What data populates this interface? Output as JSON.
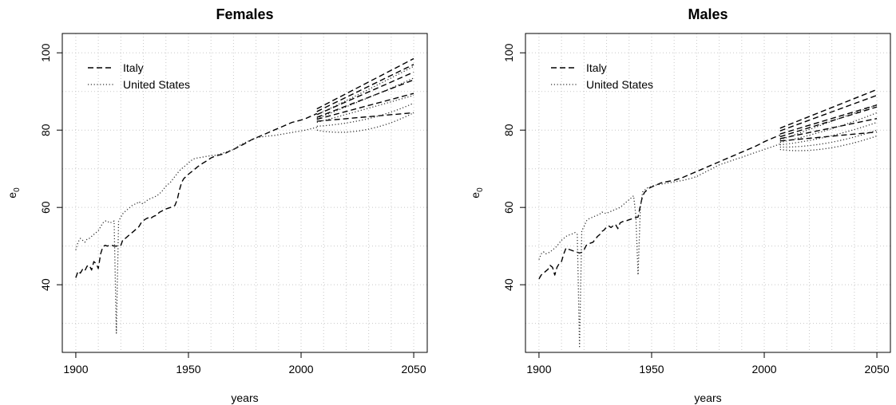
{
  "chart_data": [
    {
      "type": "line",
      "title": "Females",
      "xlabel": "years",
      "ylabel": "e",
      "ylabel_sub": "0",
      "xlim": [
        1894,
        2056
      ],
      "ylim": [
        22.5,
        105
      ],
      "xticks": [
        1900,
        1950,
        2000,
        2050
      ],
      "yticks": [
        40,
        60,
        80,
        100
      ],
      "grid": true,
      "grid_x": [
        1900,
        1910,
        1920,
        1930,
        1940,
        1950,
        1960,
        1970,
        1980,
        1990,
        2000,
        2010,
        2020,
        2030,
        2040,
        2050
      ],
      "grid_y": [
        30,
        40,
        50,
        60,
        70,
        80,
        90,
        100
      ],
      "legend_position": "top-left",
      "series": [
        {
          "name": "Italy",
          "style": "dashed",
          "color": "#000000",
          "x": [
            1900,
            1901,
            1902,
            1903,
            1904,
            1905,
            1906,
            1907,
            1908,
            1909,
            1910,
            1911,
            1912,
            1913,
            1914,
            1915,
            1916,
            1917,
            1918,
            1919,
            1920,
            1921,
            1922,
            1923,
            1924,
            1925,
            1926,
            1927,
            1928,
            1929,
            1930,
            1931,
            1932,
            1933,
            1934,
            1935,
            1936,
            1937,
            1938,
            1939,
            1940,
            1941,
            1942,
            1943,
            1944,
            1945,
            1946,
            1947,
            1948,
            1949,
            1950,
            1952,
            1954,
            1956,
            1958,
            1960,
            1962,
            1964,
            1966,
            1968,
            1970,
            1972,
            1974,
            1976,
            1978,
            1980,
            1982,
            1984,
            1986,
            1988,
            1990,
            1992,
            1994,
            1996,
            1998,
            2000,
            2002,
            2004,
            2006,
            2007
          ],
          "y": [
            41.8,
            43.5,
            43.0,
            44.0,
            43.6,
            44.8,
            45.0,
            43.8,
            46.0,
            45.5,
            44.2,
            48.0,
            49.8,
            50.2,
            50.0,
            50.2,
            50.2,
            50.0,
            50.0,
            50.1,
            50.2,
            51.8,
            52.0,
            52.5,
            53.0,
            53.5,
            54.0,
            54.5,
            55.0,
            56.0,
            56.6,
            57.0,
            57.3,
            57.0,
            57.5,
            57.8,
            58.0,
            58.7,
            59.0,
            59.3,
            59.6,
            59.8,
            60.0,
            60.2,
            60.5,
            62.0,
            64.5,
            66.5,
            67.5,
            68.0,
            68.6,
            69.5,
            70.5,
            71.3,
            72.0,
            72.8,
            73.3,
            73.6,
            73.9,
            74.5,
            75.0,
            75.6,
            76.2,
            76.8,
            77.5,
            78.0,
            78.5,
            79.0,
            79.5,
            80.0,
            80.5,
            81.0,
            81.5,
            82.0,
            82.3,
            82.6,
            83.0,
            83.5,
            84.0,
            84.3
          ]
        },
        {
          "name": "United States",
          "style": "dotted",
          "color": "#000000",
          "x": [
            1900,
            1901,
            1902,
            1903,
            1904,
            1905,
            1906,
            1907,
            1908,
            1909,
            1910,
            1911,
            1912,
            1913,
            1914,
            1915,
            1916,
            1917,
            1918,
            1919,
            1920,
            1921,
            1922,
            1923,
            1924,
            1925,
            1926,
            1927,
            1928,
            1929,
            1930,
            1932,
            1934,
            1936,
            1938,
            1940,
            1942,
            1944,
            1946,
            1948,
            1950,
            1952,
            1954,
            1956,
            1958,
            1960,
            1962,
            1964,
            1966,
            1968,
            1970,
            1972,
            1974,
            1976,
            1978,
            1980,
            1982,
            1984,
            1986,
            1988,
            1990,
            1992,
            1994,
            1996,
            1998,
            2000,
            2002,
            2004,
            2006,
            2007
          ],
          "y": [
            49.0,
            51.0,
            52.0,
            51.5,
            51.0,
            51.8,
            52.0,
            52.5,
            53.0,
            53.5,
            54.0,
            55.0,
            56.0,
            56.5,
            56.5,
            56.0,
            56.2,
            56.5,
            27.5,
            56.5,
            57.5,
            58.5,
            59.0,
            59.5,
            60.0,
            60.5,
            60.8,
            61.0,
            61.5,
            61.0,
            61.0,
            62.0,
            62.5,
            63.0,
            64.0,
            65.5,
            66.5,
            68.0,
            69.5,
            70.5,
            71.5,
            72.5,
            72.8,
            73.0,
            73.2,
            73.4,
            73.5,
            73.8,
            74.2,
            74.6,
            75.0,
            75.8,
            76.5,
            77.0,
            77.5,
            78.0,
            78.2,
            78.4,
            78.5,
            78.6,
            78.8,
            79.0,
            79.2,
            79.4,
            79.6,
            79.8,
            80.0,
            80.3,
            80.6,
            80.7
          ]
        }
      ],
      "projections": [
        {
          "country": "Italy",
          "style": "dashed",
          "x": [
            2007,
            2050
          ],
          "y_ends": [
            [
              85.5,
              98.5
            ],
            [
              84.8,
              97.0
            ],
            [
              84.0,
              95.0
            ],
            [
              83.3,
              93.0
            ],
            [
              82.8,
              89.5
            ],
            [
              82.3,
              84.5
            ]
          ]
        },
        {
          "country": "United States",
          "style": "dotted",
          "x": [
            2007,
            2020,
            2035,
            2050
          ],
          "curves": [
            [
              84.0,
              87.5,
              92.0,
              96.5
            ],
            [
              83.0,
              86.0,
              89.5,
              93.5
            ],
            [
              82.0,
              84.0,
              86.5,
              89.0
            ],
            [
              81.0,
              81.5,
              83.0,
              87.0
            ],
            [
              80.0,
              78.5,
              80.0,
              84.5
            ]
          ]
        }
      ]
    },
    {
      "type": "line",
      "title": "Males",
      "xlabel": "years",
      "ylabel": "e",
      "ylabel_sub": "0",
      "xlim": [
        1894,
        2056
      ],
      "ylim": [
        22.5,
        105
      ],
      "xticks": [
        1900,
        1950,
        2000,
        2050
      ],
      "yticks": [
        40,
        60,
        80,
        100
      ],
      "grid": true,
      "grid_x": [
        1900,
        1910,
        1920,
        1930,
        1940,
        1950,
        1960,
        1970,
        1980,
        1990,
        2000,
        2010,
        2020,
        2030,
        2040,
        2050
      ],
      "grid_y": [
        30,
        40,
        50,
        60,
        70,
        80,
        90,
        100
      ],
      "legend_position": "top-left",
      "series": [
        {
          "name": "Italy",
          "style": "dashed",
          "color": "#000000",
          "x": [
            1900,
            1901,
            1902,
            1903,
            1904,
            1905,
            1906,
            1907,
            1908,
            1909,
            1910,
            1911,
            1912,
            1913,
            1914,
            1915,
            1916,
            1917,
            1918,
            1919,
            1920,
            1921,
            1922,
            1923,
            1924,
            1925,
            1926,
            1927,
            1928,
            1929,
            1930,
            1931,
            1932,
            1933,
            1934,
            1935,
            1936,
            1937,
            1938,
            1939,
            1940,
            1941,
            1942,
            1943,
            1944,
            1945,
            1946,
            1947,
            1948,
            1949,
            1950,
            1952,
            1954,
            1956,
            1958,
            1960,
            1962,
            1964,
            1966,
            1968,
            1970,
            1972,
            1974,
            1976,
            1978,
            1980,
            1982,
            1984,
            1986,
            1988,
            1990,
            1992,
            1994,
            1996,
            1998,
            2000,
            2002,
            2004,
            2006,
            2007
          ],
          "y": [
            41.5,
            42.5,
            43.0,
            43.5,
            44.0,
            45.0,
            44.5,
            42.5,
            44.5,
            45.5,
            46.0,
            48.0,
            49.5,
            49.2,
            49.0,
            48.8,
            48.6,
            48.4,
            48.2,
            48.4,
            49.0,
            50.2,
            50.5,
            50.8,
            51.0,
            51.8,
            52.5,
            53.0,
            53.8,
            54.2,
            55.0,
            55.2,
            54.8,
            55.3,
            55.6,
            54.5,
            56.0,
            56.3,
            56.5,
            56.6,
            56.8,
            57.0,
            57.2,
            57.4,
            57.5,
            60.5,
            63.0,
            64.0,
            64.5,
            65.0,
            65.3,
            65.8,
            66.3,
            66.6,
            66.8,
            67.0,
            67.4,
            67.8,
            68.3,
            68.8,
            69.3,
            69.8,
            70.3,
            70.8,
            71.3,
            71.8,
            72.3,
            72.8,
            73.3,
            73.8,
            74.3,
            74.8,
            75.3,
            75.8,
            76.4,
            77.0,
            77.5,
            78.0,
            78.5,
            78.7
          ]
        },
        {
          "name": "United States",
          "style": "dotted",
          "color": "#000000",
          "x": [
            1900,
            1901,
            1902,
            1903,
            1904,
            1905,
            1906,
            1907,
            1908,
            1909,
            1910,
            1911,
            1912,
            1913,
            1914,
            1915,
            1916,
            1917,
            1918,
            1919,
            1920,
            1921,
            1922,
            1923,
            1924,
            1925,
            1926,
            1927,
            1928,
            1929,
            1930,
            1932,
            1934,
            1936,
            1938,
            1940,
            1941,
            1942,
            1943,
            1944,
            1945,
            1946,
            1948,
            1950,
            1952,
            1954,
            1956,
            1958,
            1960,
            1962,
            1964,
            1966,
            1968,
            1970,
            1972,
            1974,
            1976,
            1978,
            1980,
            1982,
            1984,
            1986,
            1988,
            1990,
            1992,
            1994,
            1996,
            1998,
            2000,
            2002,
            2004,
            2006,
            2007
          ],
          "y": [
            46.5,
            48.0,
            48.5,
            48.0,
            48.2,
            48.5,
            49.0,
            49.5,
            50.0,
            50.8,
            51.5,
            52.0,
            52.5,
            52.8,
            53.0,
            53.2,
            53.5,
            53.0,
            24.0,
            54.0,
            55.0,
            56.5,
            57.0,
            57.3,
            57.5,
            57.8,
            58.0,
            58.3,
            58.8,
            58.5,
            58.5,
            59.0,
            59.5,
            60.0,
            61.0,
            62.0,
            62.5,
            63.0,
            58.0,
            42.5,
            60.0,
            64.0,
            65.0,
            65.5,
            65.8,
            66.0,
            66.2,
            66.4,
            66.6,
            66.8,
            67.0,
            67.3,
            67.6,
            68.0,
            68.6,
            69.2,
            69.8,
            70.4,
            71.0,
            71.4,
            71.8,
            72.2,
            72.6,
            73.0,
            73.4,
            73.8,
            74.2,
            74.6,
            75.0,
            75.4,
            75.8,
            76.2,
            76.4
          ]
        }
      ],
      "projections": [
        {
          "country": "Italy",
          "style": "dashed",
          "x": [
            2007,
            2050
          ],
          "y_ends": [
            [
              80.5,
              90.5
            ],
            [
              79.8,
              89.0
            ],
            [
              79.0,
              86.5
            ],
            [
              78.3,
              86.0
            ],
            [
              77.8,
              83.0
            ],
            [
              77.2,
              79.5
            ]
          ]
        },
        {
          "country": "United States",
          "style": "dotted",
          "x": [
            2007,
            2020,
            2035,
            2050
          ],
          "curves": [
            [
              77.5,
              80.0,
              83.5,
              86.5
            ],
            [
              76.8,
              78.5,
              81.0,
              84.5
            ],
            [
              76.2,
              77.0,
              79.0,
              82.0
            ],
            [
              75.6,
              75.5,
              77.0,
              80.0
            ],
            [
              75.0,
              74.0,
              75.5,
              78.5
            ]
          ]
        }
      ]
    }
  ]
}
